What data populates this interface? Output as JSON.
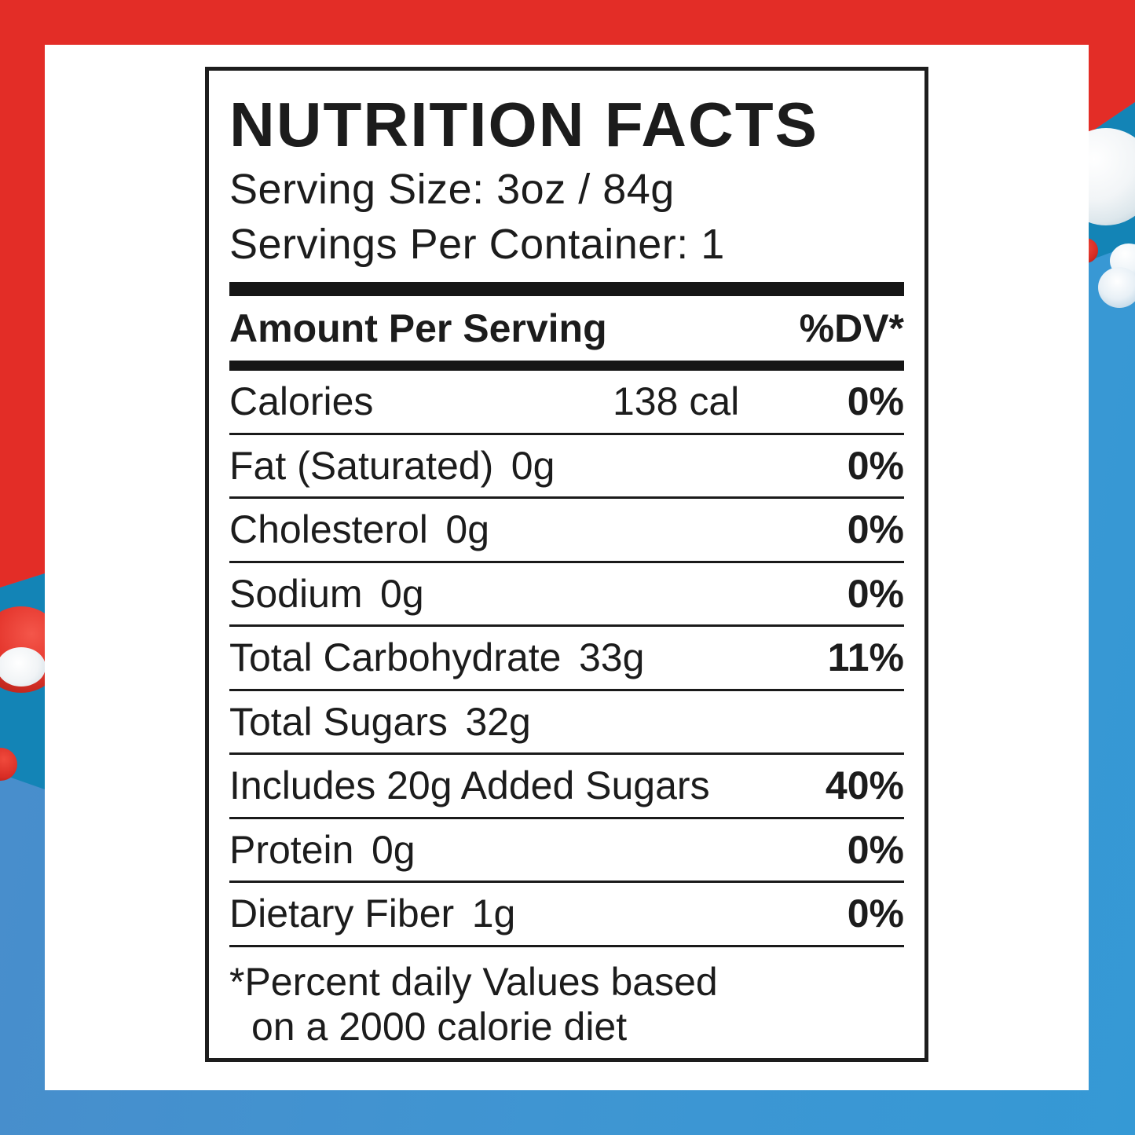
{
  "background": {
    "red": "#e32d27",
    "teal_band": "#1384b6",
    "light_blue": "#3f95d2",
    "bubble_silver": "#dde7ec",
    "bubble_red": "#d92d25",
    "bubble_white": "#ffffff"
  },
  "label": {
    "title": "NUTRITION FACTS",
    "serving_size": "Serving Size: 3oz / 84g",
    "servings_per_container": "Servings Per Container: 1",
    "amount_header": "Amount Per Serving",
    "dv_header": "%DV*",
    "rows": [
      {
        "label": "Calories",
        "value": "",
        "amount": "138 cal",
        "dv": "0%"
      },
      {
        "label": "Fat (Saturated)",
        "value": "0g",
        "amount": "",
        "dv": "0%"
      },
      {
        "label": "Cholesterol",
        "value": "0g",
        "amount": "",
        "dv": "0%"
      },
      {
        "label": "Sodium",
        "value": "0g",
        "amount": "",
        "dv": "0%"
      },
      {
        "label": "Total Carbohydrate",
        "value": "33g",
        "amount": "",
        "dv": "11%"
      },
      {
        "label": "Total Sugars",
        "value": "32g",
        "amount": "",
        "dv": ""
      },
      {
        "label": "Includes 20g Added Sugars",
        "value": "",
        "amount": "",
        "dv": "40%"
      },
      {
        "label": "Protein",
        "value": "0g",
        "amount": "",
        "dv": "0%"
      },
      {
        "label": "Dietary Fiber",
        "value": "1g",
        "amount": "",
        "dv": "0%"
      }
    ],
    "footnote_line1": "*Percent daily Values based",
    "footnote_line2": "on a 2000 calorie diet"
  }
}
